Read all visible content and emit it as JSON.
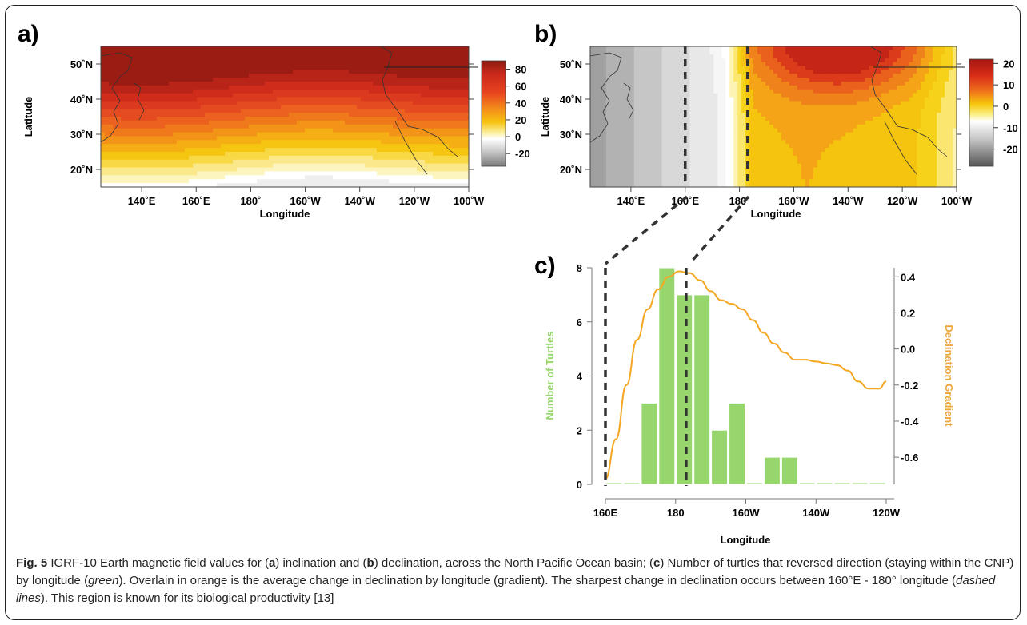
{
  "panels": {
    "a": {
      "letter": "a)",
      "ylabel": "Latitude",
      "xlabel": "Longitude",
      "lat_ticks": [
        "50˚N",
        "40˚N",
        "30˚N",
        "20˚N"
      ],
      "lon_ticks": [
        "140˚E",
        "160˚E",
        "180˚",
        "160˚W",
        "140˚W",
        "120˚W",
        "100˚W"
      ],
      "colorbar_ticks": [
        "80",
        "60",
        "40",
        "20",
        "0",
        "-20"
      ]
    },
    "b": {
      "letter": "b)",
      "ylabel": "Latitude",
      "xlabel": "Longitude",
      "lat_ticks": [
        "50˚N",
        "40˚N",
        "30˚N",
        "20˚N"
      ],
      "lon_ticks": [
        "140˚E",
        "160˚E",
        "180˚",
        "160˚W",
        "140˚W",
        "120˚W",
        "100˚W"
      ],
      "colorbar_ticks": [
        "20",
        "10",
        "0",
        "-10",
        "-20"
      ]
    },
    "c": {
      "letter": "c)",
      "xlabel": "Longitude",
      "ylabel_left": "Number of Turtles",
      "ylabel_right": "Declination Gradient",
      "x_ticks": [
        "160E",
        "180",
        "160W",
        "140W",
        "120W"
      ],
      "y_left_ticks": [
        "8",
        "6",
        "4",
        "2",
        "0"
      ],
      "y_right_ticks": [
        "0.4",
        "0.2",
        "0.0",
        "-0.2",
        "-0.4",
        "-0.6"
      ]
    }
  },
  "chart_data": [
    {
      "type": "heatmap",
      "panel": "a",
      "quantity": "inclination",
      "xlabel": "Longitude",
      "ylabel": "Latitude",
      "xlim_deg_east": [
        125,
        260
      ],
      "ylim_deg_north": [
        15,
        55
      ],
      "colorbar_range": [
        -35,
        90
      ]
    },
    {
      "type": "heatmap",
      "panel": "b",
      "quantity": "declination",
      "xlabel": "Longitude",
      "ylabel": "Latitude",
      "xlim_deg_east": [
        125,
        260
      ],
      "ylim_deg_north": [
        15,
        55
      ],
      "colorbar_range": [
        -28,
        20
      ],
      "dashed_lines_deg_east": [
        160,
        183
      ]
    },
    {
      "type": "bar",
      "panel": "c",
      "xlabel": "Longitude",
      "ylabel": "Number of Turtles",
      "ylabel_right": "Declination Gradient",
      "x_bin_centers_deg_east": [
        162.5,
        167.5,
        172.5,
        177.5,
        182.5,
        187.5,
        192.5,
        197.5,
        202.5,
        207.5,
        212.5,
        217.5,
        222.5,
        227.5,
        232.5,
        237.5
      ],
      "values": [
        0,
        0,
        3,
        8,
        7,
        7,
        2,
        3,
        0,
        1,
        1,
        0,
        0,
        0,
        0,
        0
      ],
      "ylim": [
        0,
        8
      ],
      "ylim_right": [
        -0.75,
        0.45
      ],
      "colors": {
        "bars": "#97d66d",
        "bar_edge": "#ffffff",
        "line": "#f5a623"
      },
      "series": [
        {
          "name": "Declination Gradient",
          "x_deg_east": [
            160,
            163,
            166,
            169,
            172,
            175,
            178,
            181,
            184,
            187,
            190,
            193,
            196,
            199,
            202,
            205,
            208,
            211,
            214,
            217,
            220,
            223,
            226,
            229,
            232,
            235,
            238,
            240
          ],
          "values": [
            -0.72,
            -0.5,
            -0.2,
            0.05,
            0.22,
            0.33,
            0.4,
            0.43,
            0.42,
            0.38,
            0.32,
            0.27,
            0.25,
            0.22,
            0.16,
            0.09,
            0.03,
            -0.02,
            -0.06,
            -0.06,
            -0.07,
            -0.08,
            -0.09,
            -0.12,
            -0.18,
            -0.22,
            -0.22,
            -0.18
          ]
        }
      ],
      "dashed_lines_deg_east": [
        160,
        183
      ]
    }
  ],
  "caption": {
    "fig_label": "Fig. 5",
    "text_1": " IGRF-10 Earth magnetic field values for (",
    "a": "a",
    "text_2": ") inclination and (",
    "b": "b",
    "text_3": ") declination, across the North Pacific Ocean basin; (",
    "c": "c",
    "text_4": ") Number of turtles that reversed direction (staying within the CNP) by longitude (",
    "green": "green",
    "text_5": "). Overlain in orange is the average change in declination by longitude (gradient). The sharpest change in declination occurs between 160°E - 180° longitude (",
    "dashed": "dashed lines",
    "text_6": "). This region is known for its biological productivity [13]"
  }
}
